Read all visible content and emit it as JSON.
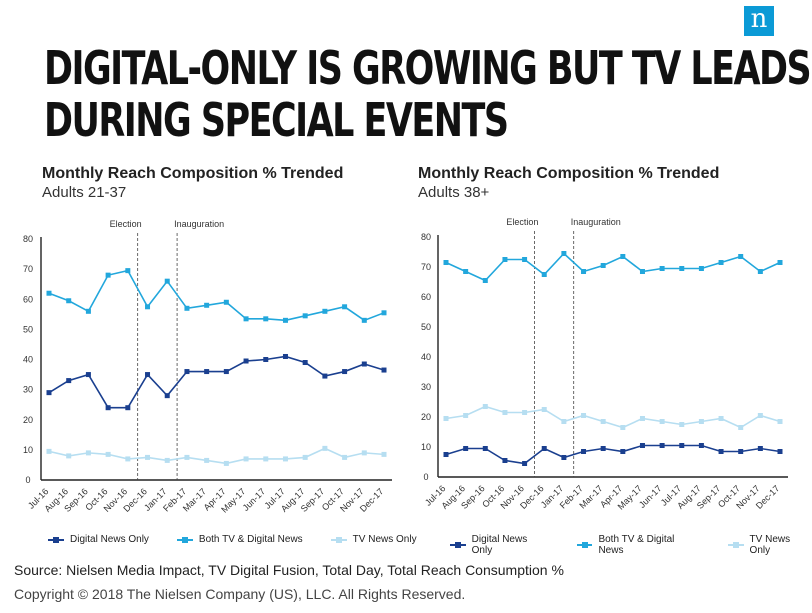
{
  "logo": "n",
  "headline": {
    "line1": "DIGITAL-ONLY IS GROWING BUT TV LEADS",
    "line2": "DURING SPECIAL EVENTS"
  },
  "footer": {
    "source": "Source: Nielsen Media Impact, TV Digital Fusion, Total Day, Total Reach Consumption %",
    "copyright": "Copyright © 2018 The Nielsen Company (US), LLC. All Rights Reserved."
  },
  "colors": {
    "digital": "#1a3f8f",
    "both": "#22a7dc",
    "tv": "#b6def1",
    "axis": "#222222"
  },
  "chart_data": [
    {
      "type": "line",
      "title": "Monthly Reach Composition % Trended",
      "subtitle": "Adults 21-37",
      "categories": [
        "Jul-16",
        "Aug-16",
        "Sep-16",
        "Oct-16",
        "Nov-16",
        "Dec-16",
        "Jan-17",
        "Feb-17",
        "Mar-17",
        "Apr-17",
        "May-17",
        "Jun-17",
        "Jul-17",
        "Aug-17",
        "Sep-17",
        "Oct-17",
        "Nov-17",
        "Dec-17"
      ],
      "ylim": [
        0,
        80
      ],
      "yticks": [
        0,
        10,
        20,
        30,
        40,
        50,
        60,
        70,
        80
      ],
      "events": [
        {
          "label": "Election",
          "category": "Nov-16"
        },
        {
          "label": "Inauguration",
          "category": "Jan-17"
        }
      ],
      "series": [
        {
          "name": "Digital News Only",
          "color": "#1a3f8f",
          "values": [
            29,
            33,
            35,
            24,
            24,
            35,
            28,
            36,
            36,
            36,
            39.5,
            40,
            41,
            39,
            34.5,
            36,
            38.5,
            36.5
          ]
        },
        {
          "name": "Both TV & Digital News",
          "color": "#22a7dc",
          "values": [
            62,
            59.5,
            56,
            68,
            69.5,
            57.5,
            66,
            57,
            58,
            59,
            53.5,
            53.5,
            53,
            54.5,
            56,
            57.5,
            53,
            55.5
          ]
        },
        {
          "name": "TV News Only",
          "color": "#b6def1",
          "values": [
            9.5,
            8,
            9,
            8.5,
            7,
            7.5,
            6.5,
            7.5,
            6.5,
            5.5,
            7,
            7,
            7,
            7.5,
            10.5,
            7.5,
            9,
            8.5
          ]
        }
      ],
      "legend": "bottom"
    },
    {
      "type": "line",
      "title": "Monthly Reach Composition % Trended",
      "subtitle": "Adults 38+",
      "categories": [
        "Jul-16",
        "Aug-16",
        "Sep-16",
        "Oct-16",
        "Nov-16",
        "Dec-16",
        "Jan-17",
        "Feb-17",
        "Mar-17",
        "Apr-17",
        "May-17",
        "Jun-17",
        "Jul-17",
        "Aug-17",
        "Sep-17",
        "Oct-17",
        "Nov-17",
        "Dec-17"
      ],
      "ylim": [
        0,
        80
      ],
      "yticks": [
        0,
        10,
        20,
        30,
        40,
        50,
        60,
        70,
        80
      ],
      "events": [
        {
          "label": "Election",
          "category": "Nov-16"
        },
        {
          "label": "Inauguration",
          "category": "Jan-17"
        }
      ],
      "series": [
        {
          "name": "Digital News Only",
          "color": "#1a3f8f",
          "values": [
            7.5,
            9.5,
            9.5,
            5.5,
            4.5,
            9.5,
            6.5,
            8.5,
            9.5,
            8.5,
            10.5,
            10.5,
            10.5,
            10.5,
            8.5,
            8.5,
            9.5,
            8.5
          ]
        },
        {
          "name": "Both TV & Digital News",
          "color": "#22a7dc",
          "values": [
            71.5,
            68.5,
            65.5,
            72.5,
            72.5,
            67.5,
            74.5,
            68.5,
            70.5,
            73.5,
            68.5,
            69.5,
            69.5,
            69.5,
            71.5,
            73.5,
            68.5,
            71.5
          ]
        },
        {
          "name": "TV News Only",
          "color": "#b6def1",
          "values": [
            19.5,
            20.5,
            23.5,
            21.5,
            21.5,
            22.5,
            18.5,
            20.5,
            18.5,
            16.5,
            19.5,
            18.5,
            17.5,
            18.5,
            19.5,
            16.5,
            20.5,
            18.5
          ]
        }
      ],
      "legend": "bottom"
    }
  ]
}
